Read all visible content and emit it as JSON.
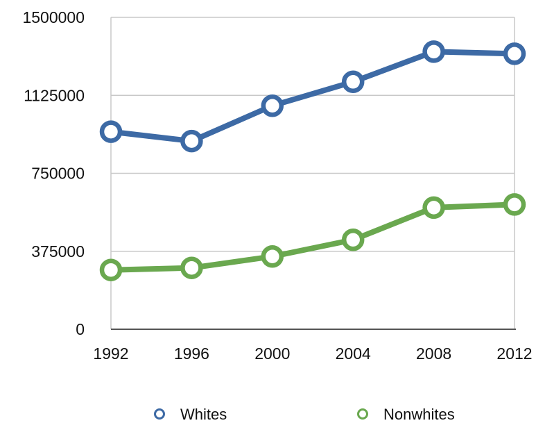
{
  "chart_data": {
    "type": "line",
    "x": [
      "1992",
      "1996",
      "2000",
      "2004",
      "2008",
      "2012"
    ],
    "yticks": [
      "0",
      "375000",
      "750000",
      "1125000",
      "1500000"
    ],
    "ylim": [
      0,
      1500000
    ],
    "grid": true,
    "legend_position": "bottom",
    "series": [
      {
        "name": "Whites",
        "color": "#3d6aa5",
        "values": [
          950000,
          905000,
          1075000,
          1190000,
          1335000,
          1325000
        ]
      },
      {
        "name": "Nonwhites",
        "color": "#6aa84f",
        "values": [
          285000,
          295000,
          350000,
          430000,
          585000,
          600000
        ]
      }
    ]
  }
}
